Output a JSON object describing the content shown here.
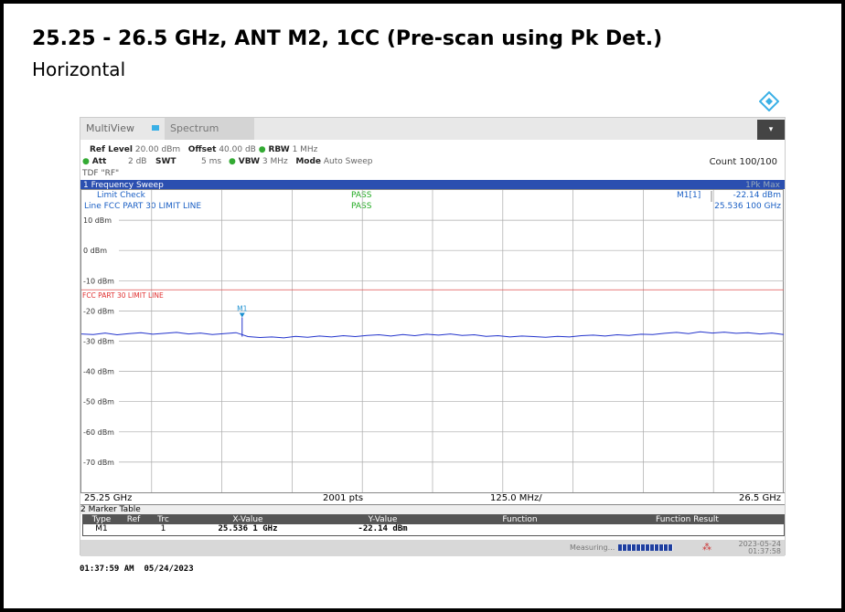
{
  "header": {
    "title": "25.25 - 26.5 GHz, ANT M2, 1CC (Pre-scan using Pk Det.)",
    "subtitle": "Horizontal"
  },
  "toolbar": {
    "app": "MultiView",
    "tab": "Spectrum"
  },
  "settings": {
    "ref_level_label": "Ref Level",
    "ref_level": "20.00 dBm",
    "offset_label": "Offset",
    "offset": "40.00 dB",
    "rbw_label": "RBW",
    "rbw": "1 MHz",
    "att_label": "Att",
    "att": "2 dB",
    "swt_label": "SWT",
    "swt": "5 ms",
    "vbw_label": "VBW",
    "vbw": "3 MHz",
    "mode_label": "Mode",
    "mode": "Auto Sweep",
    "count": "Count 100/100",
    "tdf": "TDF \"RF\""
  },
  "window": {
    "title": "1 Frequency Sweep",
    "trace_info": "1Pk Max",
    "limit_check": "Limit Check",
    "limit_check_result": "PASS",
    "line_name": "Line FCC PART 30 LIMIT LINE",
    "line_result": "PASS",
    "marker_label": "M1[1]",
    "marker_level": "-22.14 dBm",
    "marker_freq": "25.536 100 GHz",
    "limit_line_label": "FCC PART 30 LIMIT LINE",
    "marker_tag": "M1"
  },
  "plot": {
    "ylim": [
      -80,
      20
    ],
    "ytick_labels": [
      "10 dBm",
      "0 dBm",
      "-10 dBm",
      "-20 dBm",
      "-30 dBm",
      "-40 dBm",
      "-50 dBm",
      "-60 dBm",
      "-70 dBm"
    ],
    "yticks": [
      10,
      0,
      -10,
      -20,
      -30,
      -40,
      -50,
      -60,
      -70
    ],
    "xlim": [
      25.25,
      26.5
    ],
    "limit": -13,
    "marker": {
      "x": 25.5361,
      "y": -22.14
    },
    "trace": [
      -27.6,
      -27.8,
      -27.3,
      -27.9,
      -27.5,
      -27.2,
      -27.7,
      -27.4,
      -27.1,
      -27.6,
      -27.3,
      -27.8,
      -27.5,
      -27.2,
      -28.5,
      -28.8,
      -28.6,
      -28.9,
      -28.4,
      -28.7,
      -28.3,
      -28.6,
      -28.2,
      -28.5,
      -28.1,
      -27.9,
      -28.3,
      -27.8,
      -28.2,
      -27.7,
      -28.0,
      -27.6,
      -28.1,
      -27.9,
      -28.4,
      -28.2,
      -28.6,
      -28.3,
      -28.5,
      -28.7,
      -28.4,
      -28.6,
      -28.2,
      -28.0,
      -28.3,
      -27.9,
      -28.1,
      -27.7,
      -27.8,
      -27.4,
      -27.1,
      -27.5,
      -26.9,
      -27.3,
      -27.0,
      -27.4,
      -27.2,
      -27.6,
      -27.3,
      -27.8
    ]
  },
  "footer_bar": {
    "start": "25.25 GHz",
    "points": "2001 pts",
    "span": "125.0 MHz/",
    "stop": "26.5 GHz"
  },
  "marker_table": {
    "title": "2 Marker Table",
    "columns": [
      "Type",
      "Ref",
      "Trc",
      "X-Value",
      "Y-Value",
      "Function",
      "Function Result"
    ],
    "rows": [
      [
        "M1",
        "",
        "1",
        "25.536 1 GHz",
        "-22.14 dBm",
        "",
        ""
      ]
    ]
  },
  "status": {
    "state": "Measuring...",
    "date": "2023-05-24",
    "time": "01:37:58"
  },
  "timestamp": "01:37:59 AM  05/24/2023"
}
